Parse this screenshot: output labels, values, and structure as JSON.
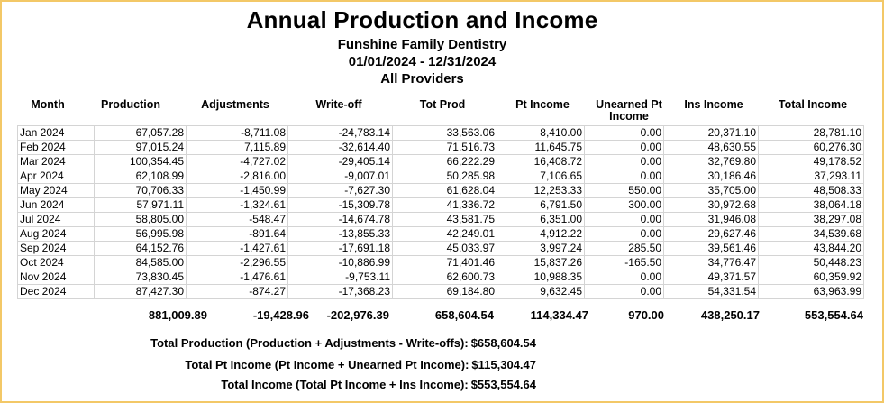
{
  "header": {
    "title": "Annual Production and Income",
    "practice": "Funshine Family Dentistry",
    "date_range": "01/01/2024 - 12/31/2024",
    "providers": "All Providers"
  },
  "columns": [
    "Month",
    "Production",
    "Adjustments",
    "Write-off",
    "Tot Prod",
    "Pt Income",
    "Unearned Pt Income",
    "Ins Income",
    "Total Income"
  ],
  "rows": [
    [
      "Jan 2024",
      "67,057.28",
      "-8,711.08",
      "-24,783.14",
      "33,563.06",
      "8,410.00",
      "0.00",
      "20,371.10",
      "28,781.10"
    ],
    [
      "Feb 2024",
      "97,015.24",
      "7,115.89",
      "-32,614.40",
      "71,516.73",
      "11,645.75",
      "0.00",
      "48,630.55",
      "60,276.30"
    ],
    [
      "Mar 2024",
      "100,354.45",
      "-4,727.02",
      "-29,405.14",
      "66,222.29",
      "16,408.72",
      "0.00",
      "32,769.80",
      "49,178.52"
    ],
    [
      "Apr 2024",
      "62,108.99",
      "-2,816.00",
      "-9,007.01",
      "50,285.98",
      "7,106.65",
      "0.00",
      "30,186.46",
      "37,293.11"
    ],
    [
      "May 2024",
      "70,706.33",
      "-1,450.99",
      "-7,627.30",
      "61,628.04",
      "12,253.33",
      "550.00",
      "35,705.00",
      "48,508.33"
    ],
    [
      "Jun 2024",
      "57,971.11",
      "-1,324.61",
      "-15,309.78",
      "41,336.72",
      "6,791.50",
      "300.00",
      "30,972.68",
      "38,064.18"
    ],
    [
      "Jul 2024",
      "58,805.00",
      "-548.47",
      "-14,674.78",
      "43,581.75",
      "6,351.00",
      "0.00",
      "31,946.08",
      "38,297.08"
    ],
    [
      "Aug 2024",
      "56,995.98",
      "-891.64",
      "-13,855.33",
      "42,249.01",
      "4,912.22",
      "0.00",
      "29,627.46",
      "34,539.68"
    ],
    [
      "Sep 2024",
      "64,152.76",
      "-1,427.61",
      "-17,691.18",
      "45,033.97",
      "3,997.24",
      "285.50",
      "39,561.46",
      "43,844.20"
    ],
    [
      "Oct 2024",
      "84,585.00",
      "-2,296.55",
      "-10,886.99",
      "71,401.46",
      "15,837.26",
      "-165.50",
      "34,776.47",
      "50,448.23"
    ],
    [
      "Nov 2024",
      "73,830.45",
      "-1,476.61",
      "-9,753.11",
      "62,600.73",
      "10,988.35",
      "0.00",
      "49,371.57",
      "60,359.92"
    ],
    [
      "Dec 2024",
      "87,427.30",
      "-874.27",
      "-17,368.23",
      "69,184.80",
      "9,632.45",
      "0.00",
      "54,331.54",
      "63,963.99"
    ]
  ],
  "totals": [
    "881,009.89",
    "-19,428.96",
    "-202,976.39",
    "658,604.54",
    "114,334.47",
    "970.00",
    "438,250.17",
    "553,554.64"
  ],
  "summary": [
    {
      "label": "Total Production (Production + Adjustments - Write-offs):",
      "value": "$658,604.54"
    },
    {
      "label": "Total Pt Income (Pt Income + Unearned Pt Income):",
      "value": "$115,304.47"
    },
    {
      "label": "Total Income (Total Pt Income + Ins Income):",
      "value": "$553,554.64"
    }
  ],
  "colors": {
    "border": "#f3c867",
    "grid": "#d4d4d4"
  }
}
